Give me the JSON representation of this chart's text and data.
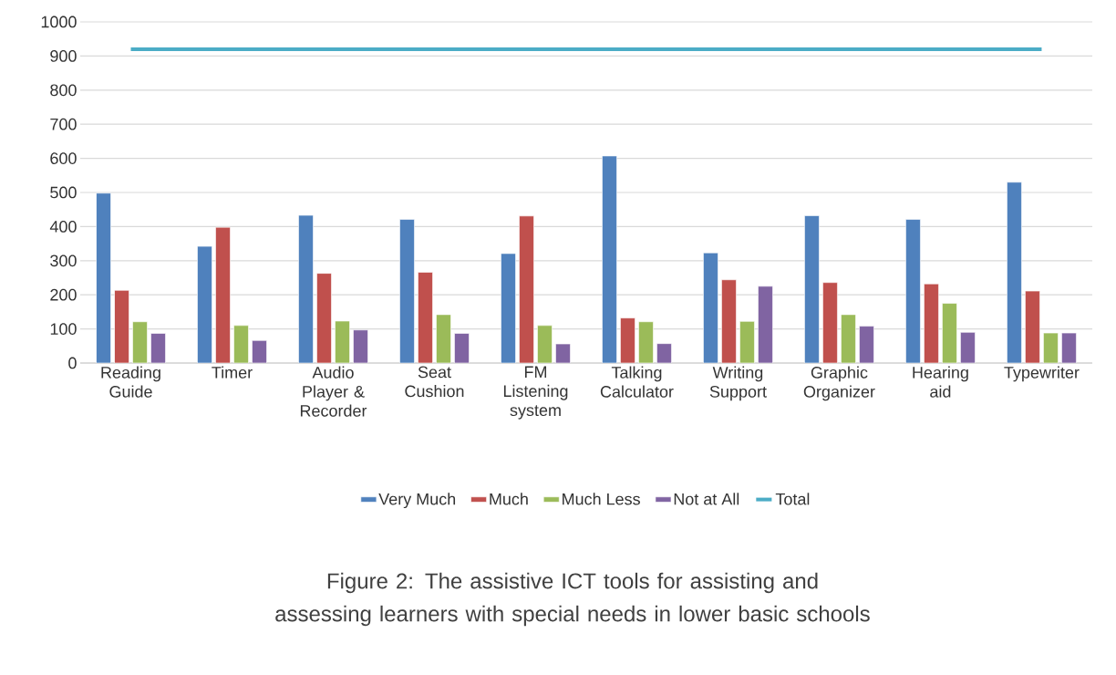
{
  "chart_data": {
    "type": "bar",
    "categories": [
      "Reading Guide",
      "Timer",
      "Audio Player & Recorder",
      "Seat Cushion",
      "FM Listening system",
      "Talking Calculator",
      "Writing Support",
      "Graphic Organizer",
      "Hearing aid",
      "Typewriter"
    ],
    "series": [
      {
        "name": "Very Much",
        "color": "#4f81bd",
        "values": [
          498,
          342,
          433,
          421,
          321,
          607,
          323,
          432,
          421,
          530
        ]
      },
      {
        "name": "Much",
        "color": "#c0504d",
        "values": [
          213,
          398,
          263,
          266,
          431,
          132,
          244,
          236,
          232,
          211
        ]
      },
      {
        "name": "Much Less",
        "color": "#9bbb59",
        "values": [
          121,
          110,
          123,
          142,
          110,
          121,
          122,
          142,
          175,
          88
        ]
      },
      {
        "name": "Not at All",
        "color": "#8064a2",
        "values": [
          87,
          66,
          97,
          87,
          56,
          57,
          225,
          108,
          90,
          88
        ]
      },
      {
        "name": "Total",
        "color": "#4bacc6",
        "type": "line",
        "values": [
          920,
          920,
          920,
          920,
          920,
          920,
          920,
          920,
          920,
          920
        ]
      }
    ],
    "ylim": [
      0,
      1000
    ],
    "yticks": [
      0,
      100,
      200,
      300,
      400,
      500,
      600,
      700,
      800,
      900,
      1000
    ],
    "grid": "y",
    "legend": "bottom",
    "annotations": [
      "Figure 2: The assistive ICT tools for assisting and assessing learners with special needs in lower basic schools"
    ]
  }
}
